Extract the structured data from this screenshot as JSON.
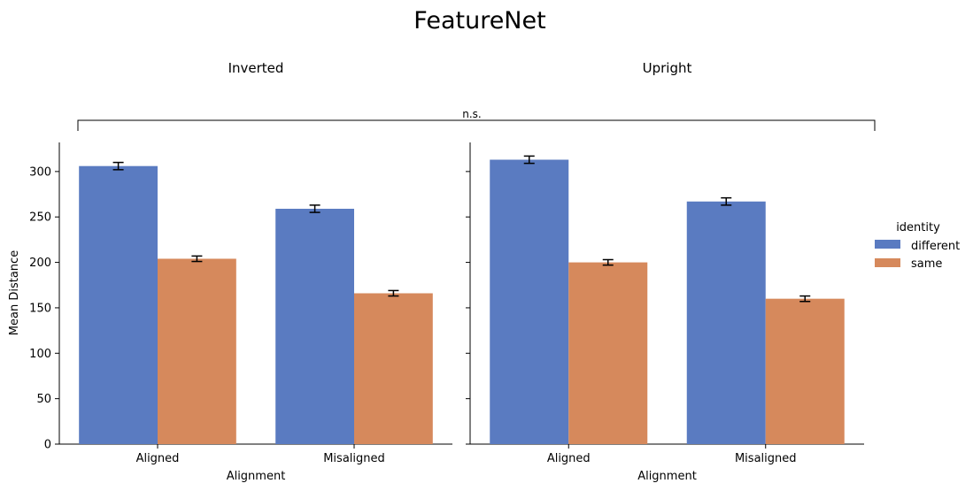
{
  "chart_data": {
    "type": "bar",
    "title": "FeatureNet",
    "ylabel": "Mean Distance",
    "xlabel": "Alignment",
    "ylim": [
      0,
      332
    ],
    "yticks": [
      0,
      50,
      100,
      150,
      200,
      250,
      300
    ],
    "categories": [
      "Aligned",
      "Misaligned"
    ],
    "legend": {
      "title": "identity",
      "placement": "right",
      "entries": [
        {
          "name": "different",
          "color": "#5a7bc1"
        },
        {
          "name": "same",
          "color": "#d6895c"
        }
      ]
    },
    "significance_label": "n.s.",
    "facets": [
      {
        "title": "Inverted",
        "series": [
          {
            "name": "different",
            "values": [
              306,
              259
            ],
            "errors": [
              4,
              4
            ]
          },
          {
            "name": "same",
            "values": [
              204,
              166
            ],
            "errors": [
              3,
              3
            ]
          }
        ]
      },
      {
        "title": "Upright",
        "series": [
          {
            "name": "different",
            "values": [
              313,
              267
            ],
            "errors": [
              4,
              4
            ]
          },
          {
            "name": "same",
            "values": [
              200,
              160
            ],
            "errors": [
              3,
              3
            ]
          }
        ]
      }
    ]
  }
}
